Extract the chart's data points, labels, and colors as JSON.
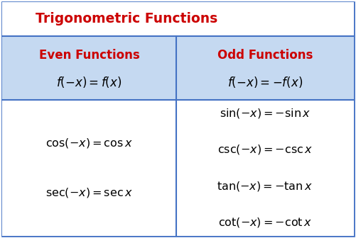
{
  "title": "Trigonometric Functions",
  "title_color": "#CC0000",
  "title_fontsize": 13.5,
  "header_bg": "#C5D9F1",
  "body_bg": "#FFFFFF",
  "outer_bg": "#FFFFFF",
  "border_color": "#4472C4",
  "even_header": "Even Functions",
  "odd_header": "Odd Functions",
  "header_color": "#CC0000",
  "header_fontsize": 12,
  "formula_header_even": "$f({-}x) = f(x)$",
  "formula_header_odd": "$f({-}x) = {-}f(x)$",
  "formula_fontsize": 12,
  "even_formulas": [
    "$\\mathrm{cos}({-}x) = \\mathrm{cos}\\, x$",
    "$\\mathrm{sec}({-}x) = \\mathrm{sec}\\, x$"
  ],
  "odd_formulas": [
    "$\\mathrm{sin}({-}x) = {-}\\mathrm{sin}\\, x$",
    "$\\mathrm{csc}({-}x) = {-}\\mathrm{csc}\\, x$",
    "$\\mathrm{tan}({-}x) = {-}\\mathrm{tan}\\, x$",
    "$\\mathrm{cot}({-}x) = {-}\\mathrm{cot}\\, x$"
  ],
  "body_fontsize": 11.5
}
